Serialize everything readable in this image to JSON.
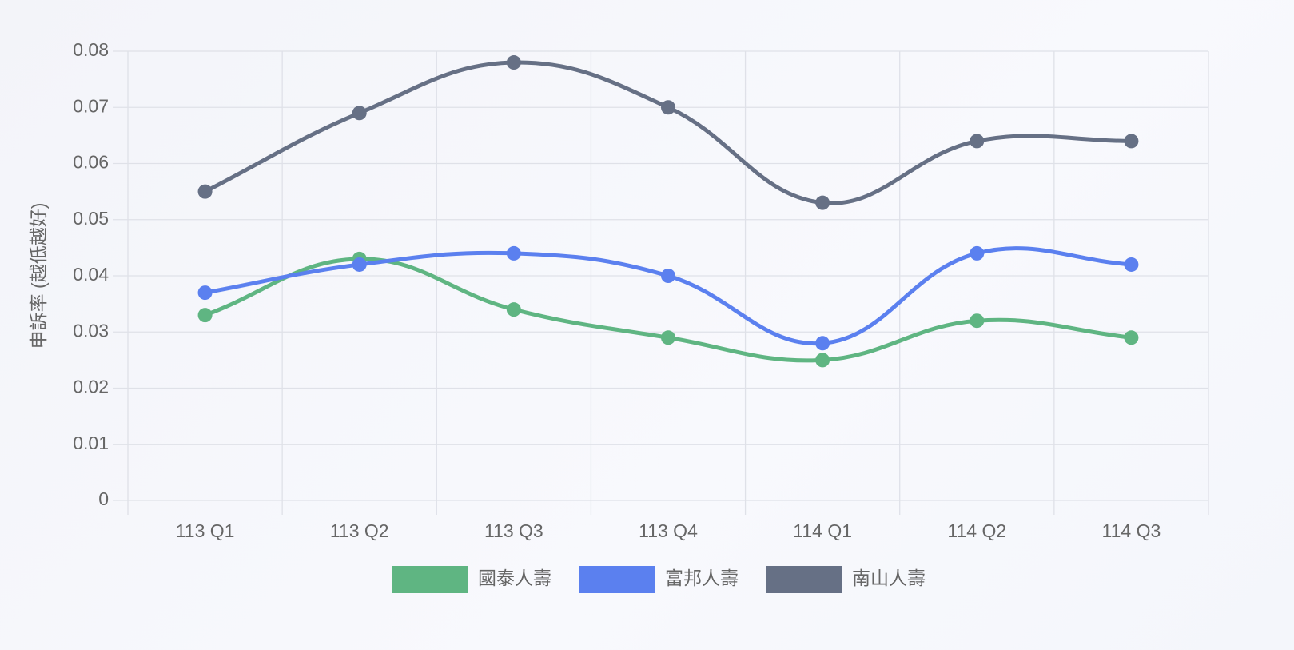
{
  "chart_data": {
    "type": "line",
    "y_label": "申訴率 (越低越好)",
    "categories": [
      "113 Q1",
      "113 Q2",
      "113 Q3",
      "113 Q4",
      "114 Q1",
      "114 Q2",
      "114 Q3"
    ],
    "series": [
      {
        "name": "國泰人壽",
        "color": "#5fb582",
        "values": [
          0.033,
          0.043,
          0.034,
          0.029,
          0.025,
          0.032,
          0.029
        ]
      },
      {
        "name": "富邦人壽",
        "color": "#5b80ef",
        "values": [
          0.037,
          0.042,
          0.044,
          0.04,
          0.028,
          0.044,
          0.042
        ]
      },
      {
        "name": "南山人壽",
        "color": "#667085",
        "values": [
          0.055,
          0.069,
          0.078,
          0.07,
          0.053,
          0.064,
          0.064
        ]
      }
    ],
    "ylim": [
      0,
      0.08
    ],
    "yticks": [
      0,
      0.01,
      0.02,
      0.03,
      0.04,
      0.05,
      0.06,
      0.07,
      0.08
    ],
    "grid": true,
    "legend": "bottom"
  }
}
